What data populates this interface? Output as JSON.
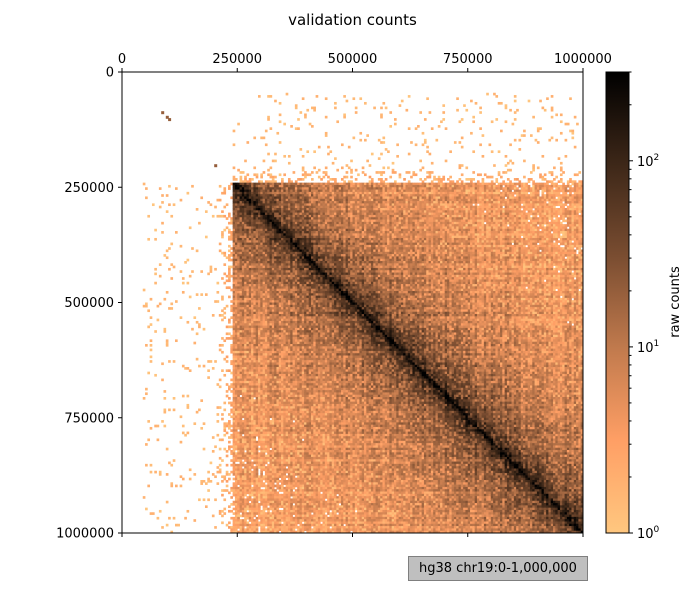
{
  "chart_data": {
    "type": "heatmap",
    "title": "validation counts",
    "x_ticks": [
      "0",
      "250000",
      "500000",
      "750000",
      "1000000"
    ],
    "y_ticks": [
      "0",
      "250000",
      "500000",
      "750000",
      "1000000"
    ],
    "x_axis_position": "top",
    "x_range": [
      0,
      1000000
    ],
    "y_range": [
      0,
      1000000
    ],
    "y_inverted": true,
    "bin_size": 5000,
    "colorbar": {
      "label": "raw counts",
      "scale": "log",
      "range": [
        1,
        300
      ],
      "tick_values": [
        1,
        10,
        100
      ],
      "tick_labels": [
        "10^0",
        "10^1",
        "10^2"
      ],
      "colormap": [
        "#ffc77f",
        "#ff9f65",
        "#c17a4d",
        "#7a4d31",
        "#3d2718",
        "#000000"
      ]
    },
    "pattern": {
      "dense_region_start": 240000,
      "diagonal_peak_counts": 300,
      "sparse_bins": [
        [
          85000,
          85000
        ],
        [
          95000,
          95000
        ],
        [
          100000,
          100000
        ],
        [
          200000,
          200000
        ]
      ]
    },
    "annotation": "hg38 chr19:0-1,000,000",
    "grid": false
  }
}
